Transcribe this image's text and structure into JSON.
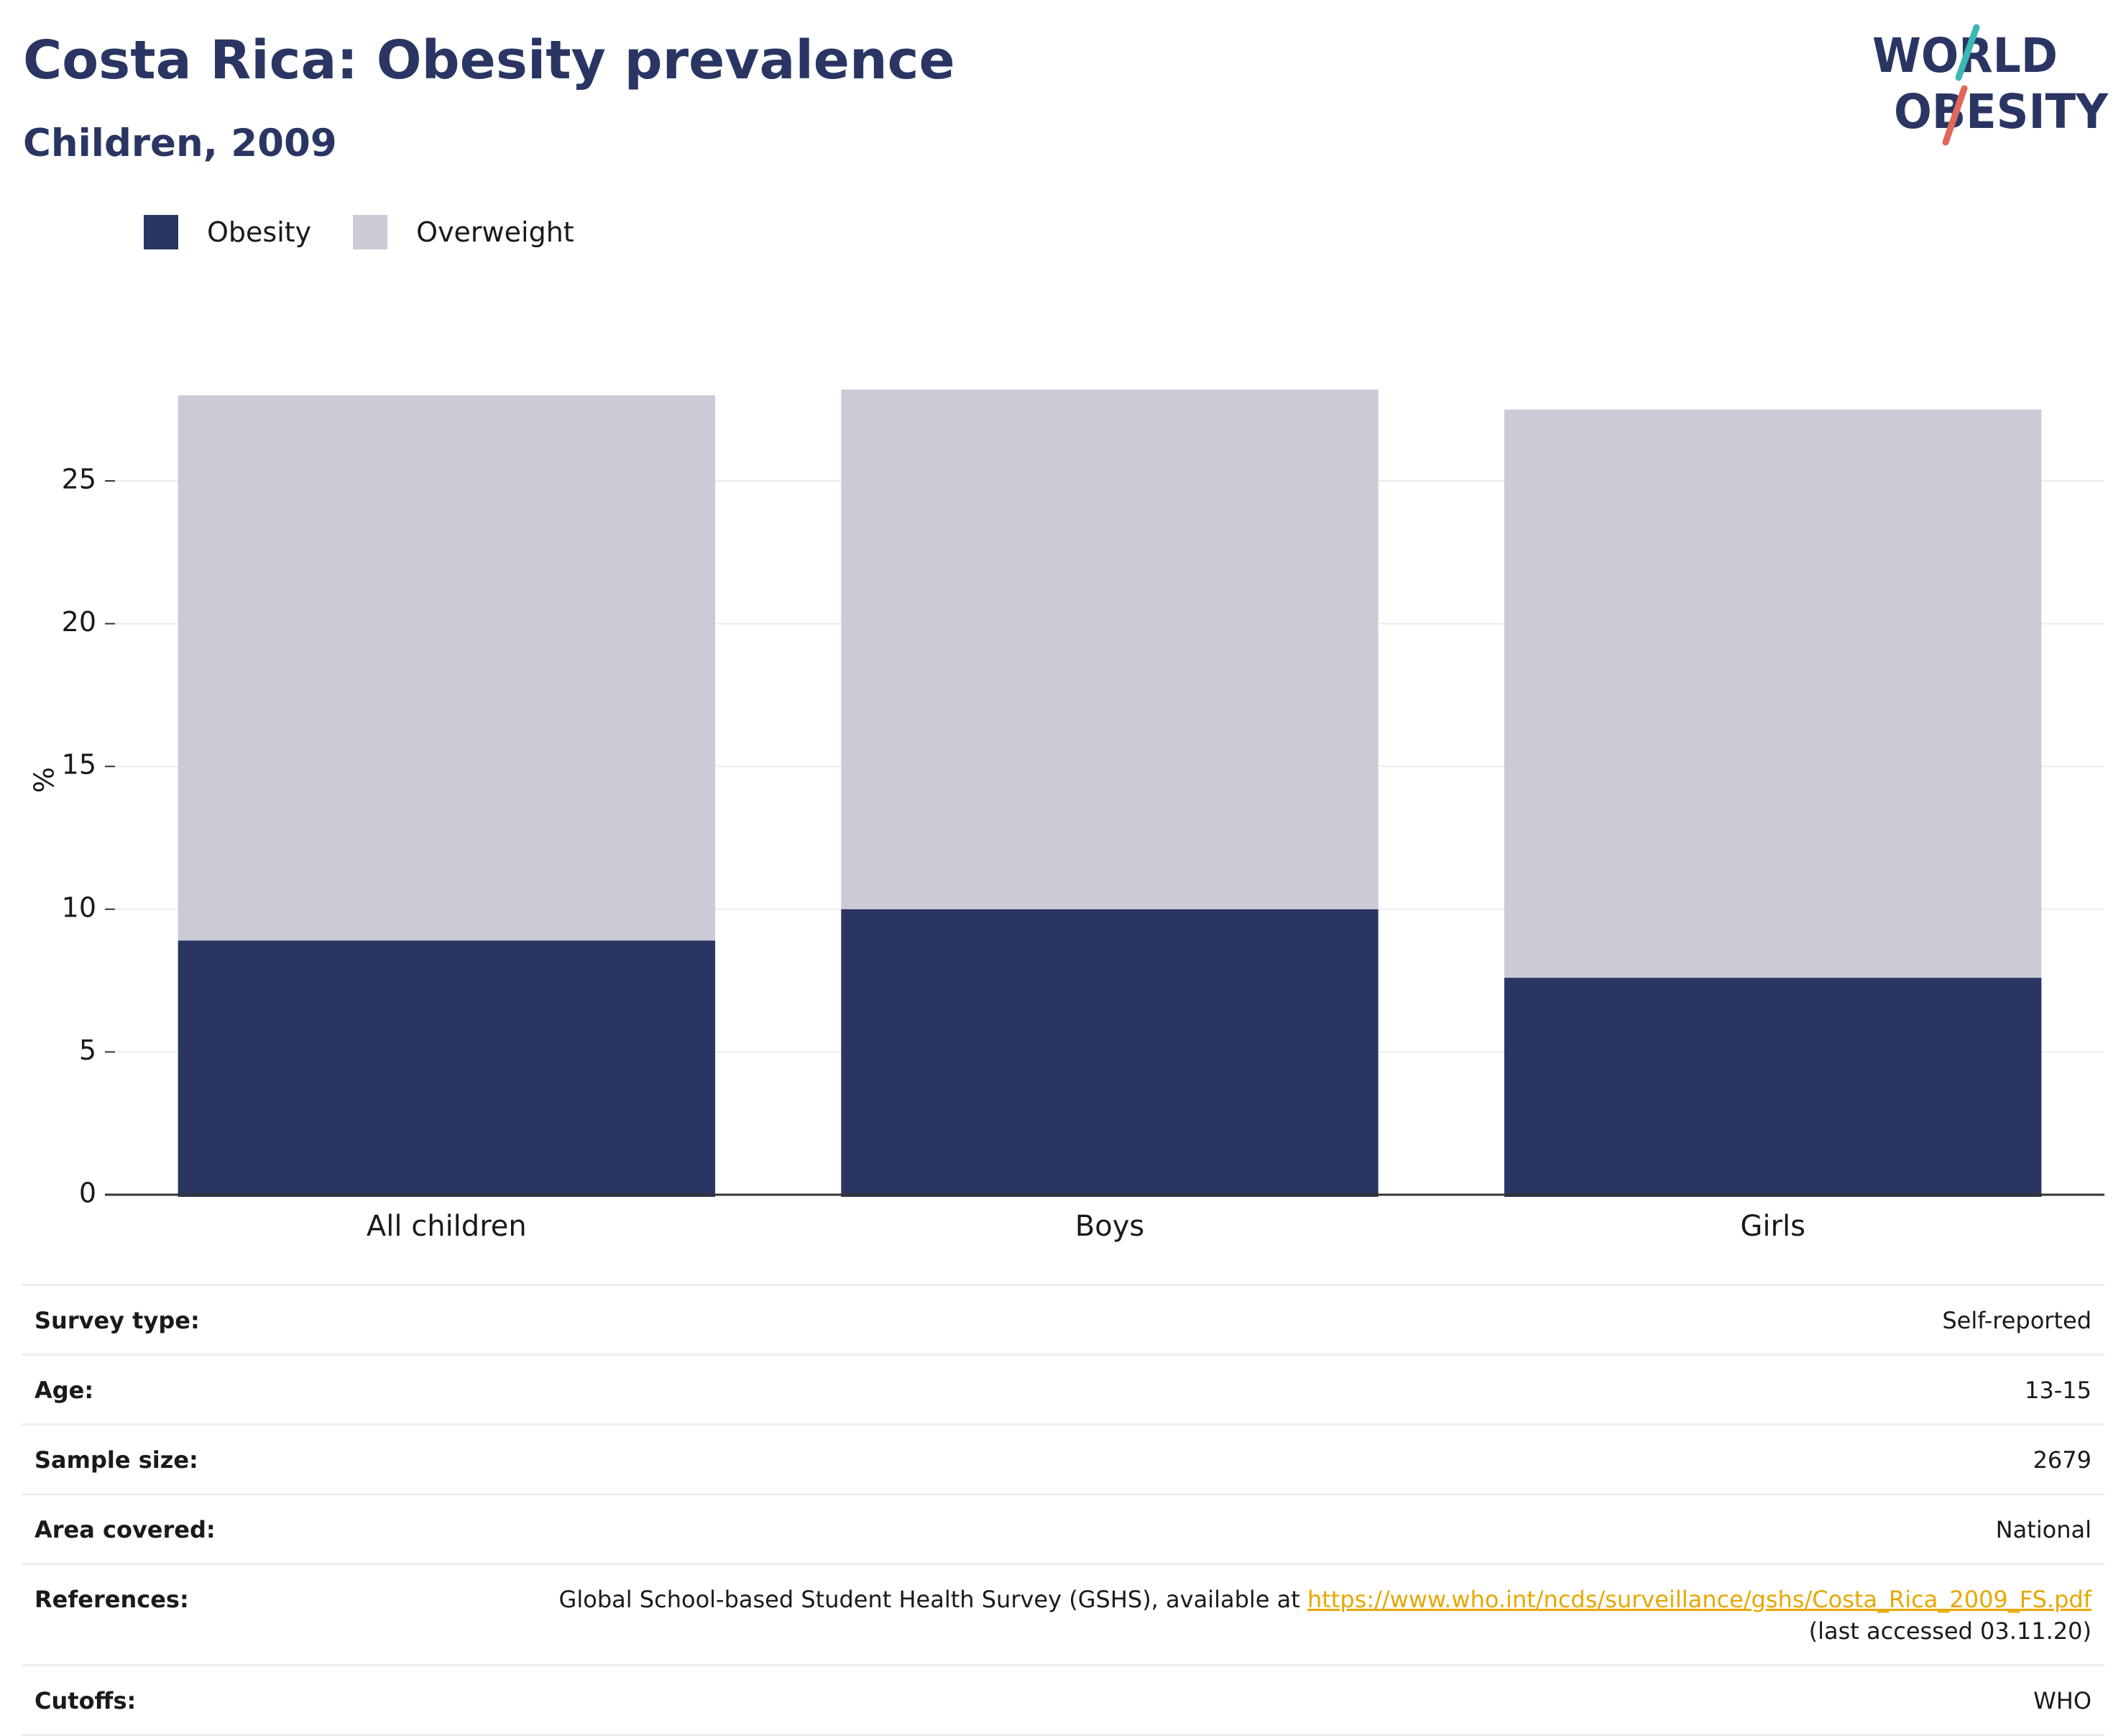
{
  "header": {
    "title": "Costa Rica: Obesity prevalence",
    "subtitle": "Children, 2009"
  },
  "logo": {
    "line1": "WORLD",
    "line2": "OBESITY"
  },
  "colors": {
    "title": "#2a3563",
    "obesity": "#2a3563",
    "overweight": "#cacbd6",
    "link": "#e6a800",
    "logo_teal": "#3bb8b3",
    "logo_coral": "#e2675b"
  },
  "chart_data": {
    "type": "bar",
    "stacked": true,
    "categories": [
      "All children",
      "Boys",
      "Girls"
    ],
    "series": [
      {
        "name": "Obesity",
        "values": [
          8.9,
          10.0,
          7.6
        ],
        "color": "#2a3563"
      },
      {
        "name": "Overweight",
        "values": [
          19.1,
          18.2,
          19.9
        ],
        "color": "#cacbd6"
      }
    ],
    "ylabel": "%",
    "ylim": [
      0,
      28.5
    ],
    "yticks": [
      0,
      5,
      10,
      15,
      20,
      25
    ],
    "grid": true,
    "legend_position": "top-left"
  },
  "info": {
    "survey_type": {
      "label": "Survey type:",
      "value": "Self-reported"
    },
    "age": {
      "label": "Age:",
      "value": "13-15"
    },
    "sample_size": {
      "label": "Sample size:",
      "value": "2679"
    },
    "area": {
      "label": "Area covered:",
      "value": "National"
    },
    "references": {
      "label": "References:",
      "text": "Global School-based Student Health Survey (GSHS), available at ",
      "link": "https://www.who.int/ncds/surveillance/gshs/Costa_Rica_2009_FS.pdf",
      "accessed": "(last accessed 03.11.20)"
    },
    "cutoffs": {
      "label": "Cutoffs:",
      "value": "WHO"
    }
  }
}
